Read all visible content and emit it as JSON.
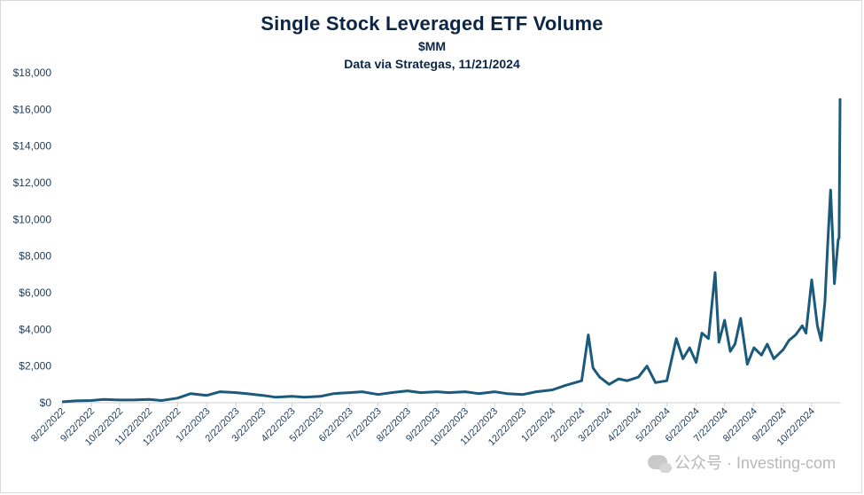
{
  "chart_data": {
    "type": "line",
    "title": "Single Stock Leveraged ETF Volume",
    "subtitle": "$MM",
    "source_note": "Data via Strategas, 11/21/2024",
    "xlabel": "",
    "ylabel": "",
    "ylim": [
      0,
      18000
    ],
    "yticks": [
      "$0",
      "$2,000",
      "$4,000",
      "$6,000",
      "$8,000",
      "$10,000",
      "$12,000",
      "$14,000",
      "$16,000",
      "$18,000"
    ],
    "xticks": [
      "8/22/2022",
      "9/22/2022",
      "10/22/2022",
      "11/22/2022",
      "12/22/2022",
      "1/22/2023",
      "2/22/2023",
      "3/22/2023",
      "4/22/2023",
      "5/22/2023",
      "6/22/2023",
      "7/22/2023",
      "8/22/2023",
      "9/22/2023",
      "10/22/2023",
      "11/22/2023",
      "12/22/2023",
      "1/22/2024",
      "2/22/2024",
      "3/22/2024",
      "4/22/2024",
      "5/22/2024",
      "6/22/2024",
      "7/22/2024",
      "8/22/2024",
      "9/22/2024",
      "10/22/2024"
    ],
    "grid": false,
    "color": "#1b5a7a",
    "series": [
      {
        "x": [
          "2022-08-22",
          "2022-09-05",
          "2022-09-22",
          "2022-10-05",
          "2022-10-22",
          "2022-11-05",
          "2022-11-22",
          "2022-12-05",
          "2022-12-22",
          "2023-01-05",
          "2023-01-22",
          "2023-02-05",
          "2023-02-22",
          "2023-03-05",
          "2023-03-22",
          "2023-04-05",
          "2023-04-22",
          "2023-05-05",
          "2023-05-22",
          "2023-06-05",
          "2023-06-22",
          "2023-07-05",
          "2023-07-22",
          "2023-08-05",
          "2023-08-22",
          "2023-09-05",
          "2023-09-22",
          "2023-10-05",
          "2023-10-22",
          "2023-11-05",
          "2023-11-22",
          "2023-12-05",
          "2023-12-22",
          "2024-01-05",
          "2024-01-22",
          "2024-02-05",
          "2024-02-22",
          "2024-02-29",
          "2024-03-05",
          "2024-03-12",
          "2024-03-22",
          "2024-04-01",
          "2024-04-10",
          "2024-04-22",
          "2024-05-01",
          "2024-05-10",
          "2024-05-22",
          "2024-06-01",
          "2024-06-08",
          "2024-06-15",
          "2024-06-22",
          "2024-06-28",
          "2024-07-05",
          "2024-07-12",
          "2024-07-16",
          "2024-07-22",
          "2024-07-28",
          "2024-08-02",
          "2024-08-08",
          "2024-08-15",
          "2024-08-22",
          "2024-08-30",
          "2024-09-05",
          "2024-09-12",
          "2024-09-22",
          "2024-09-28",
          "2024-10-05",
          "2024-10-12",
          "2024-10-16",
          "2024-10-22",
          "2024-10-28",
          "2024-11-01",
          "2024-11-05",
          "2024-11-08",
          "2024-11-11",
          "2024-11-13",
          "2024-11-15",
          "2024-11-18",
          "2024-11-19",
          "2024-11-20",
          "2024-11-21"
        ],
        "values": [
          50,
          100,
          120,
          180,
          150,
          150,
          180,
          120,
          250,
          500,
          400,
          600,
          550,
          500,
          400,
          300,
          350,
          300,
          350,
          500,
          550,
          600,
          450,
          550,
          650,
          550,
          600,
          550,
          600,
          500,
          600,
          500,
          450,
          600,
          700,
          950,
          1200,
          3700,
          1900,
          1400,
          1000,
          1300,
          1200,
          1400,
          2000,
          1100,
          1200,
          3500,
          2400,
          3000,
          2200,
          3800,
          3500,
          7100,
          3300,
          4500,
          2800,
          3200,
          4600,
          2100,
          3000,
          2600,
          3200,
          2400,
          2900,
          3400,
          3700,
          4200,
          3800,
          6700,
          4200,
          3400,
          5500,
          8700,
          11600,
          9200,
          6500,
          8300,
          8900,
          9000,
          16600
        ]
      }
    ]
  },
  "watermark": {
    "text": "公众号 · Investing-com"
  }
}
